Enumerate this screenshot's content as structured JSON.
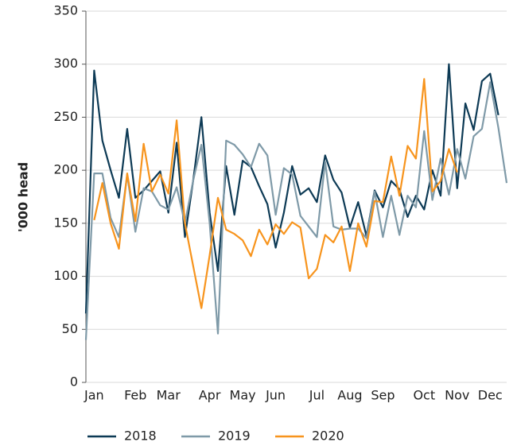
{
  "chart_data": {
    "type": "line",
    "y_label": "'000 head",
    "categories": [
      null,
      "Jan",
      null,
      null,
      null,
      null,
      "Feb",
      null,
      null,
      null,
      "Mar",
      null,
      null,
      null,
      null,
      "Apr",
      null,
      null,
      null,
      "May",
      null,
      null,
      null,
      "Jun",
      null,
      null,
      null,
      null,
      "Jul",
      null,
      null,
      null,
      "Aug",
      null,
      null,
      null,
      "Sep",
      null,
      null,
      null,
      null,
      "Oct",
      null,
      null,
      null,
      "Nov",
      null,
      null,
      null,
      "Dec",
      null,
      null
    ],
    "series": [
      {
        "name": "2018",
        "color": "#0d3a55",
        "values": [
          65,
          294,
          228,
          200,
          174,
          239,
          174,
          181,
          190,
          199,
          160,
          226,
          137,
          190,
          250,
          160,
          105,
          204,
          158,
          209,
          203,
          185,
          168,
          127,
          160,
          204,
          177,
          183,
          170,
          214,
          191,
          179,
          146,
          170,
          138,
          181,
          165,
          190,
          182,
          156,
          176,
          163,
          200,
          176,
          300,
          183,
          263,
          238,
          284,
          291,
          252,
          null
        ]
      },
      {
        "name": "2019",
        "color": "#7f9aa8",
        "values": [
          40,
          197,
          197,
          155,
          137,
          196,
          142,
          183,
          180,
          167,
          163,
          184,
          150,
          190,
          224,
          150,
          46,
          228,
          224,
          215,
          203,
          225,
          214,
          158,
          202,
          196,
          157,
          147,
          137,
          208,
          147,
          144,
          145,
          145,
          136,
          180,
          137,
          176,
          139,
          176,
          165,
          237,
          172,
          211,
          177,
          220,
          192,
          232,
          239,
          283,
          240,
          188
        ]
      },
      {
        "name": "2020",
        "color": "#f7941d",
        "values": [
          null,
          153,
          188,
          150,
          126,
          197,
          152,
          225,
          180,
          196,
          178,
          247,
          150,
          110,
          70,
          120,
          174,
          144,
          140,
          134,
          119,
          144,
          130,
          149,
          140,
          151,
          146,
          98,
          107,
          139,
          132,
          147,
          105,
          150,
          128,
          171,
          170,
          213,
          176,
          223,
          211,
          286,
          180,
          190,
          220,
          198,
          null,
          null,
          null,
          null,
          null,
          null
        ]
      }
    ],
    "ylim": [
      0,
      350
    ],
    "yticks": [
      0,
      50,
      100,
      150,
      200,
      250,
      300,
      350
    ],
    "grid": true
  }
}
